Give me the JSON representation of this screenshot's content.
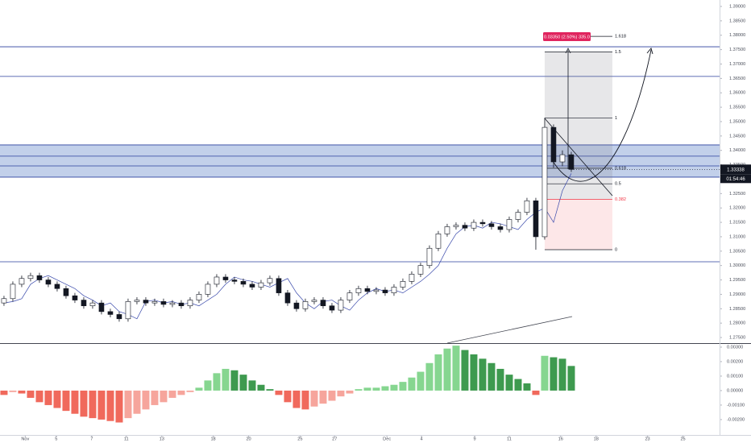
{
  "chart_data": {
    "type": "candlestick",
    "xlim": [
      -0.45,
      80.73
    ],
    "ylim": [
      1.27305,
      1.39224
    ],
    "xticks": [
      {
        "value": 2.4,
        "label": "Nov"
      },
      {
        "value": 5.9,
        "label": "5"
      },
      {
        "value": 9.9,
        "label": "7"
      },
      {
        "value": 13.8,
        "label": "11"
      },
      {
        "value": 17.8,
        "label": "13"
      },
      {
        "value": 23.6,
        "label": "18"
      },
      {
        "value": 27.6,
        "label": "20"
      },
      {
        "value": 33.4,
        "label": "25"
      },
      {
        "value": 37.3,
        "label": "27"
      },
      {
        "value": 43.2,
        "label": "Dec"
      },
      {
        "value": 47.1,
        "label": "4"
      },
      {
        "value": 53.1,
        "label": "9"
      },
      {
        "value": 57.0,
        "label": "11"
      },
      {
        "value": 62.8,
        "label": "16"
      },
      {
        "value": 66.8,
        "label": "18"
      },
      {
        "value": 72.6,
        "label": "23"
      },
      {
        "value": 76.6,
        "label": "25"
      }
    ],
    "yticks": [
      {
        "value": 1.275,
        "label": "1.27500"
      },
      {
        "value": 1.28,
        "label": "1.28000"
      },
      {
        "value": 1.285,
        "label": "1.28500"
      },
      {
        "value": 1.29,
        "label": "1.29000"
      },
      {
        "value": 1.295,
        "label": "1.29500"
      },
      {
        "value": 1.3,
        "label": "1.30000"
      },
      {
        "value": 1.305,
        "label": "1.30500"
      },
      {
        "value": 1.31,
        "label": "1.31000"
      },
      {
        "value": 1.315,
        "label": "1.31500"
      },
      {
        "value": 1.32,
        "label": "1.32000"
      },
      {
        "value": 1.325,
        "label": "1.32500"
      },
      {
        "value": 1.33,
        "label": "1.33000"
      },
      {
        "value": 1.335,
        "label": "1.33500"
      },
      {
        "value": 1.34,
        "label": "1.34000"
      },
      {
        "value": 1.345,
        "label": "1.34500"
      },
      {
        "value": 1.35,
        "label": "1.35000"
      },
      {
        "value": 1.355,
        "label": "1.35500"
      },
      {
        "value": 1.36,
        "label": "1.36000"
      },
      {
        "value": 1.365,
        "label": "1.36500"
      },
      {
        "value": 1.37,
        "label": "1.37000"
      },
      {
        "value": 1.375,
        "label": "1.37500"
      },
      {
        "value": 1.38,
        "label": "1.38000"
      },
      {
        "value": 1.385,
        "label": "1.38500"
      },
      {
        "value": 1.39,
        "label": "1.39000"
      }
    ],
    "up_color": "#ffffff",
    "down_color": "#131722",
    "open": [
      1.287,
      1.2885,
      1.2935,
      1.2955,
      1.2965,
      1.295,
      1.2935,
      1.292,
      1.2895,
      1.288,
      1.286,
      1.287,
      1.284,
      1.283,
      1.2815,
      1.2875,
      1.288,
      1.287,
      1.2875,
      1.2865,
      1.287,
      1.286,
      1.288,
      1.29,
      1.2935,
      1.296,
      1.295,
      1.2945,
      1.2935,
      1.2925,
      1.294,
      1.2955,
      1.2905,
      1.287,
      1.285,
      1.2875,
      1.288,
      1.286,
      1.2845,
      1.288,
      1.2905,
      1.292,
      1.291,
      1.2915,
      1.2905,
      1.2925,
      1.2945,
      1.297,
      1.3,
      1.306,
      1.311,
      1.3135,
      1.314,
      1.313,
      1.315,
      1.3145,
      1.3135,
      1.3125,
      1.316,
      1.3185,
      1.3225,
      1.31,
      1.348,
      1.336,
      1.3385
    ],
    "high": [
      1.2895,
      1.2945,
      1.2965,
      1.2975,
      1.2975,
      1.296,
      1.2945,
      1.293,
      1.2905,
      1.289,
      1.288,
      1.288,
      1.285,
      1.284,
      1.2885,
      1.289,
      1.289,
      1.2885,
      1.2885,
      1.288,
      1.288,
      1.289,
      1.291,
      1.2945,
      1.297,
      1.297,
      1.296,
      1.2955,
      1.2945,
      1.295,
      1.2965,
      1.2965,
      1.2915,
      1.288,
      1.2885,
      1.289,
      1.289,
      1.287,
      1.289,
      1.2915,
      1.293,
      1.293,
      1.2925,
      1.2925,
      1.2935,
      1.2955,
      1.298,
      1.301,
      1.307,
      1.312,
      1.3145,
      1.315,
      1.315,
      1.316,
      1.316,
      1.3155,
      1.3145,
      1.317,
      1.3195,
      1.3235,
      1.3235,
      1.3513,
      1.349,
      1.34,
      1.3395
    ],
    "low": [
      1.286,
      1.2875,
      1.2925,
      1.2945,
      1.294,
      1.2925,
      1.291,
      1.2885,
      1.287,
      1.285,
      1.285,
      1.283,
      1.282,
      1.2805,
      1.2805,
      1.2865,
      1.286,
      1.286,
      1.2855,
      1.2855,
      1.285,
      1.285,
      1.287,
      1.289,
      1.2925,
      1.294,
      1.2935,
      1.2925,
      1.2915,
      1.2915,
      1.293,
      1.2895,
      1.286,
      1.284,
      1.284,
      1.2865,
      1.285,
      1.2835,
      1.2835,
      1.287,
      1.2895,
      1.29,
      1.29,
      1.2895,
      1.2895,
      1.2915,
      1.2935,
      1.296,
      1.299,
      1.305,
      1.31,
      1.3125,
      1.312,
      1.312,
      1.3135,
      1.3125,
      1.3115,
      1.3115,
      1.315,
      1.3175,
      1.3055,
      1.309,
      1.334,
      1.3345,
      1.3325
    ],
    "close": [
      1.2885,
      1.2935,
      1.2955,
      1.2965,
      1.295,
      1.2935,
      1.292,
      1.2895,
      1.288,
      1.286,
      1.287,
      1.284,
      1.283,
      1.2815,
      1.2875,
      1.288,
      1.287,
      1.2875,
      1.2865,
      1.287,
      1.286,
      1.288,
      1.29,
      1.2935,
      1.296,
      1.295,
      1.2945,
      1.2935,
      1.2925,
      1.294,
      1.2955,
      1.2905,
      1.287,
      1.285,
      1.2875,
      1.288,
      1.286,
      1.2845,
      1.288,
      1.2905,
      1.292,
      1.291,
      1.2915,
      1.2905,
      1.2925,
      1.2945,
      1.297,
      1.3,
      1.306,
      1.311,
      1.3135,
      1.314,
      1.313,
      1.315,
      1.3145,
      1.3135,
      1.3125,
      1.316,
      1.3185,
      1.3225,
      1.31,
      1.348,
      1.336,
      1.3385,
      1.3334
    ],
    "basis": {
      "color": "#3949ab",
      "values": [
        1.287,
        1.2875,
        1.2885,
        1.2935,
        1.2955,
        1.2965,
        1.295,
        1.2935,
        1.292,
        1.2895,
        1.288,
        1.286,
        1.287,
        1.284,
        1.283,
        1.2815,
        1.2875,
        1.288,
        1.287,
        1.2875,
        1.2865,
        1.287,
        1.286,
        1.288,
        1.29,
        1.2935,
        1.296,
        1.295,
        1.2945,
        1.2935,
        1.2925,
        1.294,
        1.2955,
        1.2905,
        1.287,
        1.285,
        1.2875,
        1.288,
        1.286,
        1.2845,
        1.288,
        1.2905,
        1.292,
        1.291,
        1.2915,
        1.2905,
        1.2925,
        1.2945,
        1.297,
        1.3,
        1.306,
        1.311,
        1.3135,
        1.314,
        1.313,
        1.315,
        1.3145,
        1.3135,
        1.3125,
        1.316,
        1.3185,
        1.32,
        1.315,
        1.326,
        1.332
      ]
    },
    "levels": {
      "color": "#2a3f9d",
      "values": [
        1.376,
        1.3657,
        1.338,
        1.3346,
        1.3013
      ]
    },
    "zone": {
      "top": 1.3419,
      "bottom": 1.3307,
      "color": "rgba(66,110,190,0.32)"
    },
    "fib": {
      "from": 1.3055,
      "to": 1.3513,
      "levels": [
        0,
        0.382,
        0.5,
        0.618,
        1,
        1.5,
        1.618
      ],
      "colors": [
        "#131722",
        "#f23645",
        "#131722",
        "#131722",
        "#131722",
        "#131722",
        "#131722"
      ]
    },
    "measure": "0.03350 (2.50%) 335.0",
    "last_price": "1.33338",
    "countdown": "01:54:46",
    "oscillator": {
      "type": "histogram",
      "ylim": [
        -0.00306,
        0.00322
      ],
      "yticks": [
        {
          "value": -0.002,
          "label": "-0.00200"
        },
        {
          "value": -0.001,
          "label": "-0.00100"
        },
        {
          "value": 0,
          "label": "0.00000"
        },
        {
          "value": 0.001,
          "label": "0.00100"
        },
        {
          "value": 0.002,
          "label": "0.00200"
        },
        {
          "value": 0.003,
          "label": "0.00300"
        }
      ],
      "colors": {
        "pos_up": "#86d690",
        "pos_down": "#3e9a4f",
        "neg_down": "#f0695c",
        "neg_up": "#f6a59c"
      },
      "values": [
        -0.0003,
        -0.0001,
        -0.0002,
        -0.0005,
        -0.0008,
        -0.001,
        -0.0012,
        -0.0014,
        -0.0016,
        -0.0018,
        -0.0019,
        -0.002,
        -0.0021,
        -0.0022,
        -0.0019,
        -0.0016,
        -0.0013,
        -0.001,
        -0.0008,
        -0.0005,
        -0.0003,
        -0.0001,
        0.0002,
        0.0007,
        0.0012,
        0.0015,
        0.0014,
        0.0011,
        0.0007,
        0.0004,
        0.0001,
        -0.0003,
        -0.0008,
        -0.0012,
        -0.0013,
        -0.0011,
        -0.0009,
        -0.0007,
        -0.0004,
        -0.0002,
        0.0001,
        0.0002,
        0.0002,
        0.0003,
        0.0004,
        0.0006,
        0.0009,
        0.0013,
        0.0019,
        0.0025,
        0.0029,
        0.0031,
        0.0028,
        0.0025,
        0.0022,
        0.0019,
        0.0015,
        0.0011,
        0.0008,
        0.0005,
        -0.0003,
        0.0024,
        0.0023,
        0.0022,
        0.0017
      ]
    }
  }
}
